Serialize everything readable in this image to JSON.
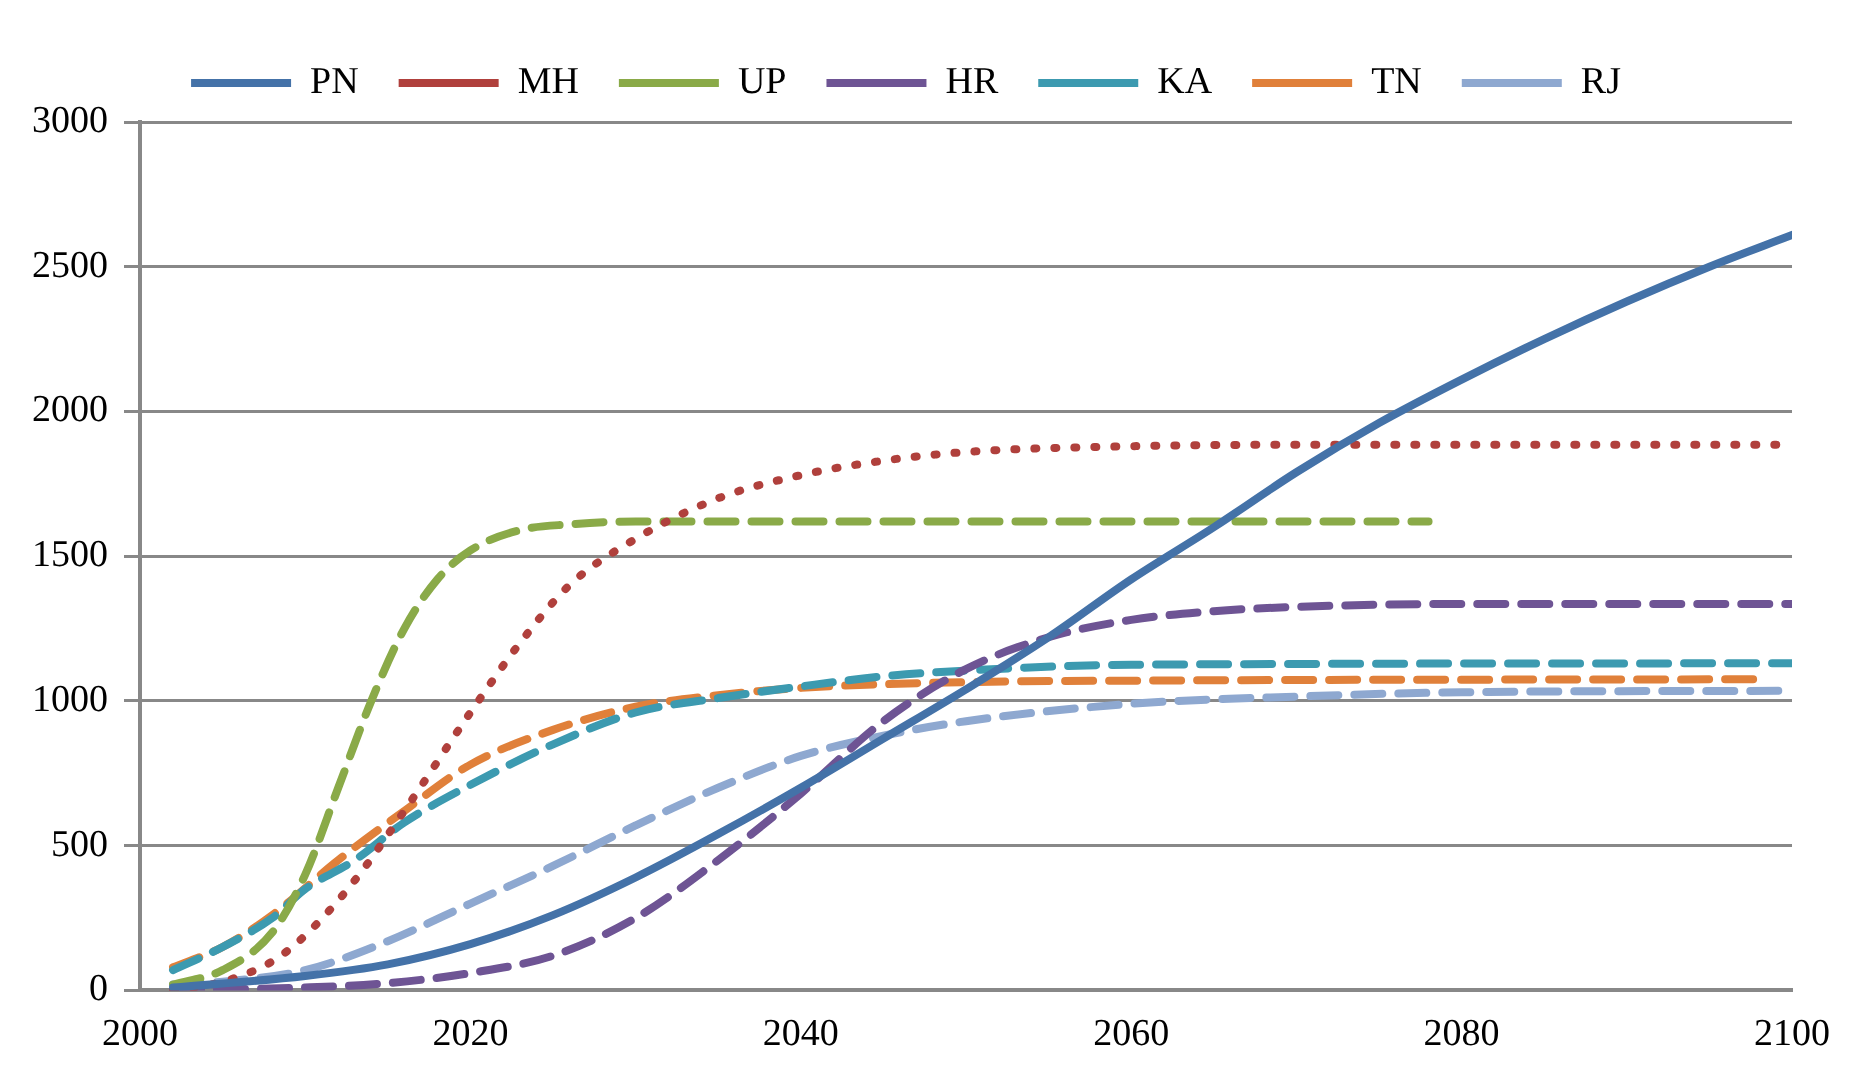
{
  "chart_data": {
    "type": "line",
    "xlim": [
      2000,
      2100
    ],
    "xticks": [
      2000,
      2020,
      2040,
      2060,
      2080,
      2100
    ],
    "ylim": [
      0,
      3000
    ],
    "yticks": [
      0,
      500,
      1000,
      1500,
      2000,
      2500,
      3000
    ],
    "grid": "y",
    "legend": "top",
    "marker": "none",
    "series": [
      {
        "name": "PN",
        "color": "#4472a8",
        "line_style": "solid",
        "x": [
          2002,
          2010,
          2015,
          2020,
          2025,
          2030,
          2035,
          2040,
          2045,
          2050,
          2055,
          2060,
          2065,
          2070,
          2075,
          2080,
          2085,
          2090,
          2095,
          2100
        ],
        "values": [
          10,
          50,
          90,
          160,
          260,
          390,
          540,
          700,
          870,
          1040,
          1220,
          1420,
          1600,
          1790,
          1960,
          2110,
          2250,
          2380,
          2500,
          2610
        ]
      },
      {
        "name": "MH",
        "color": "#b0403c",
        "line_style": "dotted",
        "x": [
          2002,
          2005,
          2008,
          2010,
          2013,
          2016,
          2020,
          2023,
          2026,
          2030,
          2035,
          2040,
          2045,
          2050,
          2060,
          2070,
          2100
        ],
        "values": [
          0,
          30,
          100,
          190,
          380,
          620,
          960,
          1200,
          1400,
          1560,
          1700,
          1780,
          1830,
          1860,
          1880,
          1885,
          1885
        ]
      },
      {
        "name": "UP",
        "color": "#8aaa48",
        "line_style": "dashed",
        "x": [
          2002,
          2005,
          2008,
          2010,
          2012,
          2014,
          2016,
          2018,
          2020,
          2023,
          2026,
          2030,
          2078
        ],
        "values": [
          20,
          70,
          200,
          400,
          700,
          1000,
          1250,
          1420,
          1520,
          1590,
          1610,
          1620,
          1620
        ]
      },
      {
        "name": "HR",
        "color": "#6e5494",
        "line_style": "dashed",
        "x": [
          2002,
          2010,
          2015,
          2020,
          2025,
          2030,
          2035,
          2040,
          2045,
          2050,
          2055,
          2060,
          2065,
          2070,
          2080,
          2100
        ],
        "values": [
          0,
          10,
          25,
          60,
          120,
          250,
          450,
          680,
          930,
          1110,
          1220,
          1280,
          1310,
          1325,
          1335,
          1335
        ]
      },
      {
        "name": "KA",
        "color": "#3c9ab0",
        "line_style": "dashed",
        "x": [
          2002,
          2005,
          2008,
          2010,
          2013,
          2016,
          2020,
          2025,
          2030,
          2035,
          2040,
          2045,
          2050,
          2060,
          2100
        ],
        "values": [
          70,
          150,
          250,
          350,
          450,
          580,
          710,
          850,
          960,
          1010,
          1050,
          1085,
          1105,
          1125,
          1130
        ]
      },
      {
        "name": "TN",
        "color": "#e0803a",
        "line_style": "dashed",
        "x": [
          2002,
          2005,
          2008,
          2012,
          2016,
          2020,
          2025,
          2030,
          2035,
          2040,
          2050,
          2060,
          2098
        ],
        "values": [
          80,
          150,
          260,
          450,
          620,
          780,
          900,
          980,
          1020,
          1045,
          1065,
          1070,
          1075
        ]
      },
      {
        "name": "RJ",
        "color": "#8ea8d0",
        "line_style": "dashed",
        "x": [
          2002,
          2005,
          2010,
          2015,
          2020,
          2025,
          2030,
          2035,
          2040,
          2045,
          2050,
          2060,
          2070,
          2080,
          2100
        ],
        "values": [
          20,
          30,
          70,
          170,
          300,
          430,
          570,
          700,
          810,
          880,
          930,
          990,
          1015,
          1030,
          1035
        ]
      }
    ]
  }
}
